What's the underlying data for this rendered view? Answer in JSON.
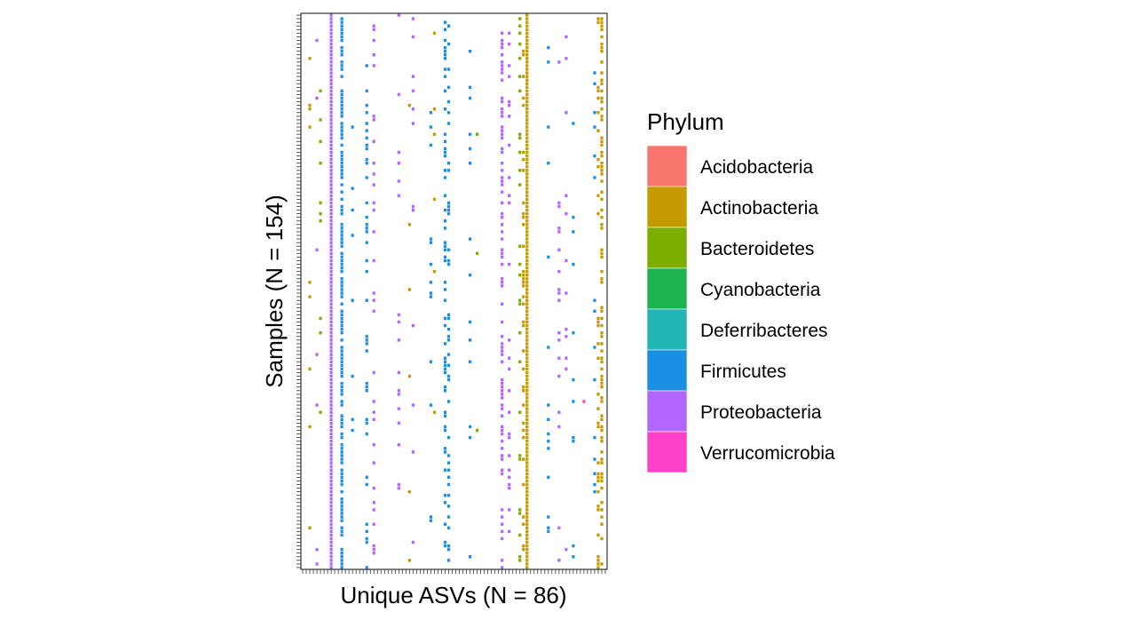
{
  "chart_data": {
    "type": "heatmap",
    "title": "",
    "xlabel": "Unique ASVs (N = 86)",
    "ylabel": "Samples (N = 154)",
    "n_columns": 86,
    "n_rows": 154,
    "grid": false,
    "legend": {
      "title": "Phylum",
      "placement": "right",
      "entries": [
        {
          "name": "Acidobacteria",
          "color": "#F8766D"
        },
        {
          "name": "Actinobacteria",
          "color": "#C49A00"
        },
        {
          "name": "Bacteroidetes",
          "color": "#7CAE00"
        },
        {
          "name": "Cyanobacteria",
          "color": "#1DB34F"
        },
        {
          "name": "Deferribacteres",
          "color": "#22B5B5"
        },
        {
          "name": "Firmicutes",
          "color": "#1A8FE3"
        },
        {
          "name": "Proteobacteria",
          "color": "#B266FF"
        },
        {
          "name": "Verrucomicrobia",
          "color": "#FF40C8"
        }
      ]
    },
    "series": [
      {
        "phylum": "Proteobacteria",
        "column": 8,
        "rows": "all"
      },
      {
        "phylum": "Actinobacteria",
        "column": 63,
        "rows": "all"
      },
      {
        "phylum": "Firmicutes",
        "column": 11,
        "density": 0.75
      },
      {
        "phylum": "Firmicutes",
        "column": 18,
        "density": 0.3
      },
      {
        "phylum": "Proteobacteria",
        "column": 20,
        "density": 0.25
      },
      {
        "phylum": "Firmicutes",
        "column": 40,
        "density": 0.35
      },
      {
        "phylum": "Firmicutes",
        "column": 41,
        "density": 0.25
      },
      {
        "phylum": "Proteobacteria",
        "column": 56,
        "density": 0.45
      },
      {
        "phylum": "Proteobacteria",
        "column": 58,
        "density": 0.2
      },
      {
        "phylum": "Actinobacteria",
        "column": 62,
        "density": 0.25
      },
      {
        "phylum": "Actinobacteria",
        "column": 84,
        "density": 0.45
      },
      {
        "phylum": "Actinobacteria",
        "column": 83,
        "density": 0.25
      },
      {
        "phylum": "Firmicutes",
        "column": 82,
        "density": 0.08
      },
      {
        "phylum": "Bacteroidetes",
        "column": 5,
        "density": 0.05
      },
      {
        "phylum": "Actinobacteria",
        "column": 2,
        "density": 0.06
      },
      {
        "phylum": "Bacteroidetes",
        "column": 61,
        "density": 0.12
      },
      {
        "phylum": "Proteobacteria",
        "column": 27,
        "density": 0.1
      },
      {
        "phylum": "Proteobacteria",
        "column": 31,
        "density": 0.1
      },
      {
        "phylum": "Actinobacteria",
        "column": 30,
        "density": 0.08
      },
      {
        "phylum": "Firmicutes",
        "column": 47,
        "density": 0.1
      },
      {
        "phylum": "Proteobacteria",
        "column": 72,
        "density": 0.1
      },
      {
        "phylum": "Firmicutes",
        "column": 69,
        "density": 0.06
      },
      {
        "phylum": "Verrucomicrobia",
        "column": 79,
        "density": 0.03
      },
      {
        "phylum": "Bacteroidetes",
        "column": 49,
        "density": 0.04
      },
      {
        "phylum": "Firmicutes",
        "column": 14,
        "density": 0.06
      },
      {
        "phylum": "Proteobacteria",
        "column": 4,
        "density": 0.05
      },
      {
        "phylum": "Actinobacteria",
        "column": 37,
        "density": 0.05
      },
      {
        "phylum": "Firmicutes",
        "column": 36,
        "density": 0.06
      },
      {
        "phylum": "Proteobacteria",
        "column": 74,
        "density": 0.05
      },
      {
        "phylum": "Firmicutes",
        "column": 76,
        "density": 0.05
      }
    ]
  }
}
